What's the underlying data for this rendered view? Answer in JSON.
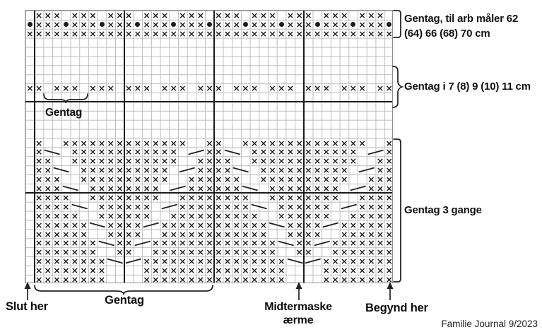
{
  "page": {
    "credit": "Familie Journal 9/2023"
  },
  "annotations": {
    "top_repeat_line1": "Gentag, til arb måler 62",
    "top_repeat_line2": "(64) 66 (68) 70 cm",
    "mid_repeat": "Gentag i 7 (8) 9 (10) 11 cm",
    "bottom_repeat": "Gentag 3 gange",
    "small_brace_label": "Gentag",
    "end_label": "Slut her",
    "bottom_brace_label": "Gentag",
    "center_label_line1": "Midtermaske",
    "center_label_line2": "ærme",
    "start_label": "Begynd her"
  },
  "chart_data": {
    "type": "knitting-chart",
    "columns": 41,
    "rows": 30,
    "colors": {
      "symbol": "#1f1f1f",
      "grid_line": "#bdbdbd",
      "bold_line": "#1a1a1a"
    },
    "legend": {
      "x": "cross stitch (×)",
      "o": "dot stitch (●)",
      "\\": "travelling stitch leaning right-down (2 cells)",
      "/": "travelling stitch leaning right-up (2 cells)",
      ".": "empty square"
    },
    "bold_cols_after": [
      1,
      11,
      21,
      31
    ],
    "bold_rows_after": [
      10,
      20
    ],
    "grid_rows": [
      ".xxx.xxx.xxx.xxx.xxx.xxx.xxx.xxx.xxx.xxx.",
      "oxxxoxxxoxxxoxxxoxxxoxxxoxxxoxxxoxxxoxxxo",
      "xxxxxxxxxxxxxxxxxxxxxxxxxxxxxxxxxxxxxxxxx",
      ".........................................",
      ".........................................",
      ".........................................",
      ".........................................",
      ".........................................",
      "xx.xxx.xxx.xxx.xxx.xxx.xxx.xxx.xxx.xxx.xx",
      ".........................................",
      ".........................................",
      ".........................................",
      ".........................................",
      ".........................................",
      ".x..xxxxxxxxxxxxxx..xx..xxxxxxxxxxxxxx..x",
      ".x\\\\.xxxxxxxxxxxx.//xx\\\\.xxxxxxxxxxxx.//x",
      ".xx..xxxxxxxxxxxx..xxxx..xxxxxxxxxxxx..xx",
      ".xx\\\\.xxxxxxxxxx.//xxxx\\\\.xxxxxxxxxx.//xx",
      ".xxx..xxxxxxxxxx..xxxxxx..xxxxxxxxxx..xxx",
      ".xxx\\\\.xxxxxxxx.//xxxxxx\\\\.xxxxxxxx.//xxx",
      ".xxxx..xxxxxxxx..xxxxxxxx..xxxxxxxx..xxxx",
      ".xxxx\\\\.xxxxxx.//xxxxxxxx\\\\.xxxxxx.//xxxx",
      ".xxxxx..xxxxxx..xxxxxxxxxx..xxxxxx..xxxxx",
      ".xxxxxx\\\\xxxx//xxxxxxxxxxxx\\\\xxxx//xxxxxx",
      ".xxxxxx..xxxx..xxxxxxxxxxxx..xxxx..xxxxxx",
      ".xxxxxxx\\\\xx//xxxxxxxxxxxxxx\\\\xx//xxxxxxx",
      ".xxxxxxx..xx..xxxxxxxxxxxxxx..xx..xxxxxxx",
      ".xxxxxxxx\\\\//xxxxxxxxxxxxxxxx\\\\//xxxxxxxx",
      ".xxxxxxxx....xxxxxxxxxxxxxxxx....xxxxxxxx",
      ".xxxxxxxx....xxxxxxxxxxxxxxxx....xxxxxxxx"
    ]
  }
}
